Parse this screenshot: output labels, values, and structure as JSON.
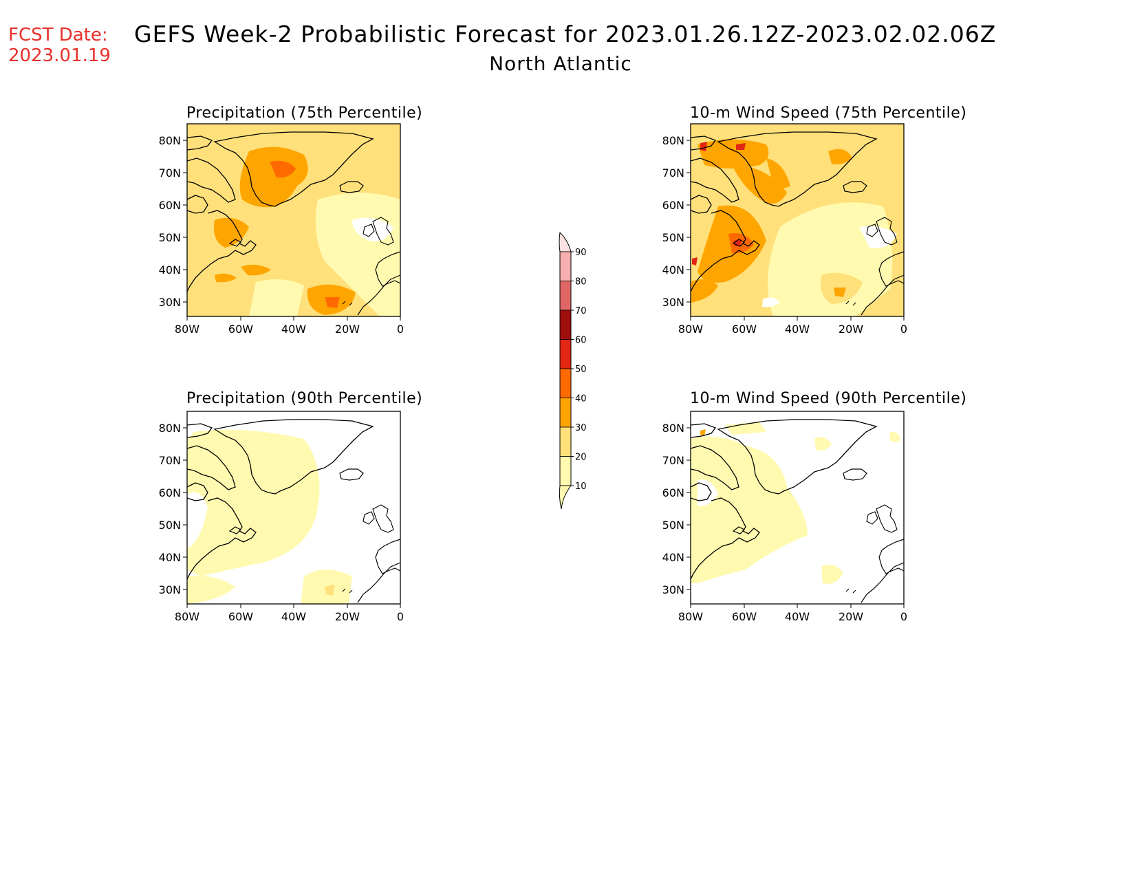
{
  "header": {
    "fcst_label": "FCST Date:",
    "fcst_date": "2023.01.19",
    "title": "GEFS Week-2 Probabilistic Forecast for 2023.01.26.12Z-2023.02.02.06Z",
    "subtitle": "North Atlantic"
  },
  "axes": {
    "lat_ticks": [
      "80N",
      "70N",
      "60N",
      "50N",
      "40N",
      "30N"
    ],
    "lon_ticks": [
      "80W",
      "60W",
      "40W",
      "20W",
      "0"
    ]
  },
  "panels": [
    {
      "id": "precip-75",
      "title": "Precipitation (75th Percentile)"
    },
    {
      "id": "wind-75",
      "title": "10-m Wind Speed (75th Percentile)"
    },
    {
      "id": "precip-90",
      "title": "Precipitation (90th Percentile)"
    },
    {
      "id": "wind-90",
      "title": "10-m Wind Speed (90th Percentile)"
    }
  ],
  "colorbar": {
    "labels": [
      "90",
      "80",
      "70",
      "60",
      "50",
      "40",
      "30",
      "20",
      "10"
    ],
    "colors": [
      "#f7b0b0",
      "#e06666",
      "#a10e0e",
      "#e32612",
      "#ff6a00",
      "#ffa500",
      "#ffe07a",
      "#fffab0"
    ]
  },
  "colors": {
    "level_10": "#fffab0",
    "level_20": "#ffe07a",
    "level_30": "#ffa500",
    "level_40": "#ff6a00",
    "level_50": "#e32612",
    "fcst_red": "#e8302a"
  }
}
